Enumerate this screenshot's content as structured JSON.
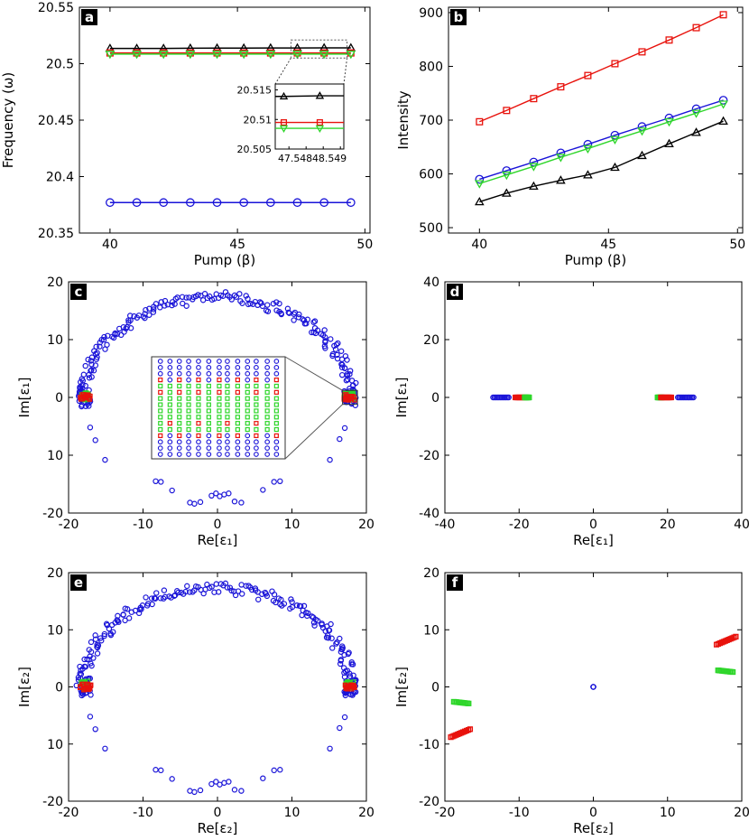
{
  "colors": {
    "black": "#000000",
    "red": "#e8120c",
    "blue": "#1a14d8",
    "green": "#2ed62a"
  },
  "chart_data": [
    {
      "type": "line",
      "panel": "a",
      "xlabel": "Pump (β)",
      "ylabel": "Frequency (ω)",
      "xlim": [
        38.8,
        50.2
      ],
      "ylim": [
        20.35,
        20.55
      ],
      "xticks": [
        "40",
        "45",
        "50"
      ],
      "yticks": [
        "20.35",
        "20.4",
        "20.45",
        "20.5",
        "20.55"
      ],
      "x": [
        40,
        41.05,
        42.1,
        43.15,
        44.2,
        45.25,
        46.3,
        47.35,
        48.4,
        49.45
      ],
      "series": [
        {
          "marker": "triangle",
          "color": "black",
          "values": [
            20.5135,
            20.5135,
            20.5135,
            20.5137,
            20.5138,
            20.5138,
            20.5139,
            20.5139,
            20.514,
            20.514
          ]
        },
        {
          "marker": "square",
          "color": "red",
          "values": [
            20.5095,
            20.5095,
            20.5095,
            20.5095,
            20.5095,
            20.5095,
            20.5095,
            20.5095,
            20.5095,
            20.5095
          ]
        },
        {
          "marker": "triangle-down",
          "color": "green",
          "values": [
            20.5085,
            20.5085,
            20.5085,
            20.5085,
            20.5085,
            20.5085,
            20.5085,
            20.5085,
            20.5085,
            20.5085
          ]
        },
        {
          "marker": "circle",
          "color": "blue",
          "values": [
            20.377,
            20.377,
            20.377,
            20.377,
            20.377,
            20.377,
            20.377,
            20.377,
            20.377,
            20.377
          ]
        }
      ],
      "inset": {
        "xlim": [
          47.1,
          49.1
        ],
        "ylim": [
          20.505,
          20.516
        ],
        "xticks": [
          "47.5",
          "48",
          "48.5",
          "49"
        ],
        "yticks": [
          "20.505",
          "20.51",
          "20.515"
        ],
        "x": [
          47.35,
          48.4
        ],
        "series": [
          {
            "marker": "triangle",
            "color": "black",
            "values": [
              20.5139,
              20.514
            ]
          },
          {
            "marker": "square",
            "color": "red",
            "values": [
              20.5095,
              20.5095
            ]
          },
          {
            "marker": "triangle-down",
            "color": "green",
            "values": [
              20.5085,
              20.5085
            ]
          }
        ]
      }
    },
    {
      "type": "line",
      "panel": "b",
      "xlabel": "Pump (β)",
      "ylabel": "Intensity",
      "xlim": [
        38.8,
        50.2
      ],
      "ylim": [
        490,
        910
      ],
      "xticks": [
        "40",
        "45",
        "50"
      ],
      "yticks": [
        "500",
        "600",
        "700",
        "800",
        "900"
      ],
      "x": [
        40,
        41.05,
        42.1,
        43.15,
        44.2,
        45.25,
        46.3,
        47.35,
        48.4,
        49.45
      ],
      "series": [
        {
          "marker": "square",
          "color": "red",
          "values": [
            697,
            718,
            740,
            762,
            783,
            805,
            827,
            849,
            872,
            896
          ]
        },
        {
          "marker": "circle",
          "color": "blue",
          "values": [
            590,
            606,
            622,
            639,
            655,
            672,
            688,
            704,
            721,
            737
          ]
        },
        {
          "marker": "triangle-down",
          "color": "green",
          "values": [
            582,
            598,
            614,
            631,
            647,
            664,
            680,
            697,
            713,
            730
          ]
        },
        {
          "marker": "triangle",
          "color": "black",
          "values": [
            548,
            564,
            577,
            588,
            598,
            612,
            634,
            656,
            677,
            698
          ]
        }
      ]
    },
    {
      "type": "scatter",
      "panel": "c",
      "xlabel": "Re[ε₁]",
      "ylabel": "Im[ε₁]",
      "xlim": [
        -20,
        20
      ],
      "ylim": [
        -20,
        20
      ],
      "xticks": [
        "-20",
        "-10",
        "0",
        "10",
        "20"
      ],
      "yticks": [
        "20",
        "10",
        "0",
        "10",
        "-20"
      ],
      "ring_radius": 18,
      "clusters": [
        {
          "color": "green",
          "x": [
            -18.3,
            -17.3
          ],
          "y": [
            -0.4,
            1.0
          ]
        },
        {
          "color": "red",
          "x": [
            -18.5,
            -17.0
          ],
          "y": [
            -0.5,
            0.5
          ]
        },
        {
          "color": "green",
          "x": [
            17.0,
            18.3
          ],
          "y": [
            -0.4,
            1.0
          ]
        },
        {
          "color": "red",
          "x": [
            17.0,
            18.5
          ],
          "y": [
            -0.5,
            0.5
          ]
        }
      ],
      "blue_lower_points": [
        [
          -17.1,
          -5.2
        ],
        [
          -16.4,
          -7.4
        ],
        [
          -15.1,
          -10.8
        ],
        [
          -8.3,
          -14.5
        ],
        [
          -7.6,
          -14.6
        ],
        [
          -6.1,
          -16.1
        ],
        [
          -3.7,
          -18.2
        ],
        [
          -3.1,
          -18.4
        ],
        [
          -2.3,
          -18.1
        ],
        [
          -0.8,
          -17.0
        ],
        [
          -0.2,
          -16.6
        ],
        [
          0.3,
          -17.1
        ],
        [
          0.9,
          -16.8
        ],
        [
          1.5,
          -16.6
        ],
        [
          2.3,
          -18.0
        ],
        [
          3.2,
          -18.2
        ],
        [
          6.1,
          -16.0
        ],
        [
          7.6,
          -14.6
        ],
        [
          8.4,
          -14.5
        ],
        [
          15.1,
          -10.8
        ],
        [
          16.4,
          -7.2
        ],
        [
          17.1,
          -5.3
        ]
      ],
      "inset": {
        "rows_y": [
          -1.0,
          -0.8,
          -0.6,
          -0.4,
          -0.2,
          0.0,
          0.2,
          0.4,
          0.6,
          0.8,
          1.0
        ],
        "columns": 13
      }
    },
    {
      "type": "scatter",
      "panel": "d",
      "xlabel": "Re[ε₁]",
      "ylabel": "Im[ε₁]",
      "xlim": [
        -40,
        40
      ],
      "ylim": [
        -40,
        40
      ],
      "xticks": [
        "-40",
        "-20",
        "0",
        "20",
        "40"
      ],
      "yticks": [
        "40",
        "20",
        "0",
        "-20",
        "-40"
      ],
      "clusters": [
        {
          "color": "blue",
          "x": [
            -27.0,
            -22.8
          ],
          "y": [
            0,
            0
          ]
        },
        {
          "color": "red",
          "x": [
            -21.0,
            -18.2
          ],
          "y": [
            0,
            0
          ]
        },
        {
          "color": "green",
          "x": [
            -18.5,
            -17.3
          ],
          "y": [
            0,
            0
          ]
        },
        {
          "color": "green",
          "x": [
            17.3,
            18.5
          ],
          "y": [
            0,
            0
          ]
        },
        {
          "color": "red",
          "x": [
            18.2,
            21.0
          ],
          "y": [
            0,
            0
          ]
        },
        {
          "color": "blue",
          "x": [
            22.8,
            27.0
          ],
          "y": [
            0,
            0
          ]
        }
      ]
    },
    {
      "type": "scatter",
      "panel": "e",
      "xlabel": "Re[ε₂]",
      "ylabel": "Im[ε₂]",
      "xlim": [
        -20,
        20
      ],
      "ylim": [
        -20,
        20
      ],
      "xticks": [
        "-20",
        "-10",
        "0",
        "10",
        "20"
      ],
      "yticks": [
        "20",
        "10",
        "0",
        "10",
        "-20"
      ],
      "ring_radius": 18,
      "clusters": [
        {
          "color": "green",
          "x": [
            -18.3,
            -17.3
          ],
          "y": [
            -0.4,
            1.0
          ]
        },
        {
          "color": "red",
          "x": [
            -18.5,
            -17.0
          ],
          "y": [
            -0.5,
            0.5
          ]
        },
        {
          "color": "green",
          "x": [
            17.0,
            18.3
          ],
          "y": [
            -0.4,
            1.0
          ]
        },
        {
          "color": "red",
          "x": [
            17.0,
            18.5
          ],
          "y": [
            -0.5,
            0.5
          ]
        }
      ],
      "blue_lower_points": [
        [
          -17.1,
          -5.2
        ],
        [
          -16.4,
          -7.4
        ],
        [
          -15.1,
          -10.8
        ],
        [
          -8.3,
          -14.5
        ],
        [
          -7.6,
          -14.6
        ],
        [
          -6.1,
          -16.1
        ],
        [
          -3.7,
          -18.2
        ],
        [
          -3.1,
          -18.4
        ],
        [
          -2.3,
          -18.1
        ],
        [
          -0.8,
          -17.0
        ],
        [
          -0.2,
          -16.6
        ],
        [
          0.3,
          -17.1
        ],
        [
          0.9,
          -16.8
        ],
        [
          1.5,
          -16.6
        ],
        [
          2.3,
          -18.0
        ],
        [
          3.2,
          -18.2
        ],
        [
          6.1,
          -16.0
        ],
        [
          7.6,
          -14.6
        ],
        [
          8.4,
          -14.5
        ],
        [
          15.1,
          -10.8
        ],
        [
          16.4,
          -7.2
        ],
        [
          17.1,
          -5.3
        ]
      ]
    },
    {
      "type": "scatter",
      "panel": "f",
      "xlabel": "Re[ε₂]",
      "ylabel": "Im[ε₂]",
      "xlim": [
        -20,
        20
      ],
      "ylim": [
        -20,
        20
      ],
      "xticks": [
        "-20",
        "-10",
        "0",
        "10",
        "20"
      ],
      "yticks": [
        "20",
        "10",
        "0",
        "-10",
        "-20"
      ],
      "clusters": [
        {
          "color": "green",
          "x": [
            -18.8,
            -16.8
          ],
          "y": [
            -2.6,
            -2.9
          ]
        },
        {
          "color": "red",
          "x": [
            -19.2,
            -16.6
          ],
          "y": [
            -8.8,
            -7.4
          ]
        },
        {
          "color": "blue",
          "x": [
            0,
            0
          ],
          "y": [
            0,
            0
          ]
        },
        {
          "color": "green",
          "x": [
            16.8,
            18.8
          ],
          "y": [
            2.9,
            2.6
          ]
        },
        {
          "color": "red",
          "x": [
            16.6,
            19.2
          ],
          "y": [
            7.4,
            8.8
          ]
        }
      ]
    }
  ]
}
